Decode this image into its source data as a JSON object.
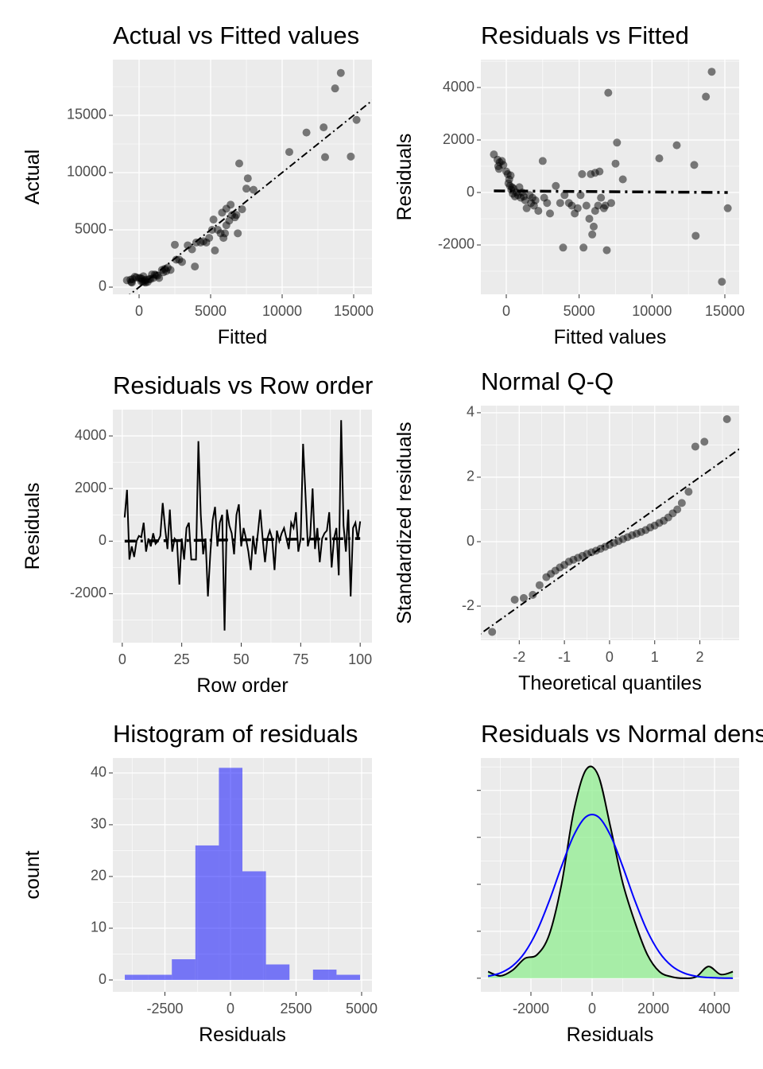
{
  "chart_data": [
    {
      "type": "scatter",
      "title": "Actual vs Fitted values",
      "xlabel": "Fitted",
      "ylabel": "Actual",
      "color": "#000000",
      "alpha": 0.5,
      "diagonal": true,
      "grid": true,
      "xlim": [
        -1833,
        16278
      ],
      "ylim": [
        -625,
        19861
      ],
      "xticks": [
        0,
        5000,
        10000,
        15000
      ],
      "yticks": [
        0,
        5000,
        10000,
        15000
      ],
      "x": [
        -850,
        -600,
        -550,
        -500,
        -450,
        -300,
        -200,
        0,
        100,
        150,
        200,
        250,
        300,
        350,
        400,
        450,
        500,
        600,
        700,
        800,
        900,
        1000,
        1100,
        1200,
        1300,
        1400,
        1600,
        1700,
        1900,
        2000,
        2200,
        2500,
        2600,
        2800,
        3000,
        3400,
        3700,
        3900,
        4300,
        4500,
        4700,
        4900,
        5100,
        5200,
        5300,
        5500,
        5700,
        5900,
        6000,
        6100,
        6300,
        6400,
        6500,
        6700,
        6800,
        6900,
        7000,
        7200,
        7500,
        7600,
        8000,
        10500,
        11700,
        12900,
        13000,
        13700,
        14100,
        14800,
        15200,
        5800,
        6100,
        4000,
        1800
      ],
      "values": [
        600,
        650,
        450,
        400,
        700,
        900,
        850,
        800,
        800,
        500,
        700,
        500,
        950,
        450,
        600,
        400,
        650,
        450,
        700,
        700,
        1100,
        800,
        1100,
        1050,
        1000,
        800,
        1500,
        1300,
        1400,
        1700,
        1500,
        3700,
        2400,
        2400,
        2200,
        3650,
        3300,
        1800,
        3900,
        4000,
        3900,
        4300,
        5000,
        5900,
        3200,
        5000,
        4700,
        4300,
        4700,
        5400,
        5800,
        7200,
        6300,
        6100,
        6300,
        4700,
        10800,
        6800,
        8600,
        9500,
        8500,
        11800,
        13500,
        13950,
        11350,
        17350,
        18700,
        11400,
        14600,
        6500,
        6850,
        3900,
        1600
      ]
    },
    {
      "type": "scatter",
      "title": "Residuals vs Fitted",
      "xlabel": "Fitted values",
      "ylabel": "Residuals",
      "color": "#000000",
      "alpha": 0.5,
      "grid": true,
      "xlim": [
        -1745,
        15983
      ],
      "ylim": [
        -3879,
        5061
      ],
      "xticks": [
        0,
        5000,
        10000,
        15000
      ],
      "yticks": [
        -2000,
        0,
        2000,
        4000
      ],
      "x": [
        -850,
        -600,
        -550,
        -500,
        -450,
        -300,
        -200,
        0,
        100,
        150,
        200,
        250,
        300,
        350,
        400,
        450,
        500,
        600,
        700,
        800,
        900,
        1000,
        1100,
        1200,
        1300,
        1400,
        1600,
        1700,
        1900,
        2000,
        2200,
        2500,
        2600,
        2800,
        3000,
        3400,
        3700,
        3900,
        4300,
        4500,
        4700,
        4900,
        5100,
        5200,
        5300,
        5500,
        5700,
        5900,
        6000,
        6100,
        6300,
        6400,
        6500,
        6700,
        6800,
        6900,
        7000,
        7200,
        7500,
        7600,
        8000,
        10500,
        11700,
        12900,
        13000,
        13700,
        14100,
        14800,
        15200,
        5800,
        6100,
        4000,
        1800
      ],
      "values": [
        1450,
        1250,
        1000,
        900,
        1150,
        1200,
        1050,
        800,
        700,
        350,
        500,
        250,
        650,
        100,
        200,
        -50,
        150,
        -150,
        0,
        -100,
        200,
        -200,
        0,
        -150,
        -300,
        -600,
        -100,
        -400,
        -500,
        -300,
        -700,
        1200,
        -200,
        -400,
        -800,
        250,
        -400,
        -2100,
        -400,
        -500,
        -800,
        -600,
        -100,
        700,
        -2100,
        -500,
        -1000,
        -1600,
        -1300,
        -700,
        -500,
        800,
        -200,
        -600,
        -500,
        -2200,
        3800,
        -400,
        1100,
        1900,
        500,
        1300,
        1800,
        1050,
        -1650,
        3650,
        4600,
        -3400,
        -600,
        700,
        750,
        -100,
        -200
      ],
      "trend": {
        "x": [
          -850,
          15200
        ],
        "values": [
          60,
          0
        ]
      }
    },
    {
      "type": "line",
      "title": "Residuals vs Row order",
      "xlabel": "Row order",
      "ylabel": "Residuals",
      "color": "#000000",
      "grid": true,
      "xlim": [
        -3.95,
        104.95
      ],
      "ylim": [
        -3860,
        5000
      ],
      "xticks": [
        0,
        25,
        50,
        75,
        100
      ],
      "yticks": [
        -2000,
        0,
        2000,
        4000
      ],
      "x": [
        1,
        2,
        3,
        4,
        5,
        6,
        7,
        8,
        9,
        10,
        11,
        12,
        13,
        14,
        15,
        16,
        17,
        18,
        19,
        20,
        21,
        22,
        23,
        24,
        25,
        26,
        27,
        28,
        29,
        30,
        31,
        32,
        33,
        34,
        35,
        36,
        37,
        38,
        39,
        40,
        41,
        42,
        43,
        44,
        45,
        46,
        47,
        48,
        49,
        50,
        51,
        52,
        53,
        54,
        55,
        56,
        57,
        58,
        59,
        60,
        61,
        62,
        63,
        64,
        65,
        66,
        67,
        68,
        69,
        70,
        71,
        72,
        73,
        74,
        75,
        76,
        77,
        78,
        79,
        80,
        81,
        82,
        83,
        84,
        85,
        86,
        87,
        88,
        89,
        90,
        91,
        92,
        93,
        94,
        95,
        96,
        97,
        98,
        99,
        100
      ],
      "values": [
        900,
        1950,
        -700,
        -200,
        -600,
        0,
        200,
        150,
        700,
        -400,
        100,
        -200,
        300,
        -100,
        0,
        200,
        1450,
        500,
        -300,
        1200,
        -400,
        100,
        0,
        -1650,
        100,
        -700,
        500,
        700,
        -700,
        -700,
        -700,
        3800,
        1000,
        -500,
        100,
        -2100,
        -500,
        800,
        1300,
        -200,
        700,
        1000,
        -3400,
        1200,
        600,
        300,
        -500,
        1000,
        1400,
        -200,
        500,
        100,
        -400,
        -1100,
        200,
        -500,
        300,
        1200,
        100,
        -800,
        100,
        400,
        100,
        -1100,
        400,
        0,
        300,
        500,
        100,
        -300,
        700,
        500,
        1100,
        -400,
        100,
        3700,
        1800,
        -200,
        200,
        2000,
        -300,
        500,
        -800,
        100,
        300,
        400,
        1100,
        -1000,
        100,
        500,
        -1300,
        4600,
        600,
        -400,
        1200,
        -2100,
        500,
        700,
        50,
        750
      ],
      "trend": {
        "x": [
          1,
          100
        ],
        "values": [
          0,
          100
        ]
      }
    },
    {
      "type": "scatter",
      "title": "Normal Q-Q",
      "xlabel": "Theoretical quantiles",
      "ylabel": "Standardized residuals",
      "color": "#000000",
      "alpha": 0.5,
      "diagonal": true,
      "grid": true,
      "xlim": [
        -2.85,
        2.87
      ],
      "ylim": [
        -3.06,
        4.22
      ],
      "xticks": [
        -2,
        -1,
        0,
        1,
        2
      ],
      "yticks": [
        -2,
        0,
        2,
        4
      ],
      "x": [
        -2.6,
        -2.1,
        -1.9,
        -1.7,
        -1.55,
        -1.4,
        -1.3,
        -1.2,
        -1.1,
        -1.0,
        -0.9,
        -0.8,
        -0.7,
        -0.6,
        -0.5,
        -0.4,
        -0.3,
        -0.2,
        -0.1,
        0,
        0.1,
        0.2,
        0.3,
        0.4,
        0.5,
        0.6,
        0.7,
        0.8,
        0.9,
        1.0,
        1.1,
        1.2,
        1.3,
        1.4,
        1.5,
        1.6,
        1.75,
        1.9,
        2.1,
        2.6
      ],
      "values": [
        -2.8,
        -1.8,
        -1.75,
        -1.65,
        -1.35,
        -1.1,
        -1.0,
        -0.9,
        -0.8,
        -0.72,
        -0.62,
        -0.56,
        -0.5,
        -0.44,
        -0.38,
        -0.33,
        -0.28,
        -0.22,
        -0.16,
        -0.1,
        -0.04,
        0.02,
        0.08,
        0.14,
        0.2,
        0.25,
        0.3,
        0.36,
        0.44,
        0.5,
        0.58,
        0.65,
        0.75,
        0.88,
        1.0,
        1.2,
        1.55,
        2.95,
        3.1,
        3.8
      ]
    },
    {
      "type": "histogram",
      "title": "Histogram of residuals",
      "xlabel": "Residuals",
      "ylabel": "count",
      "color": "#0000ff",
      "alpha": 0.5,
      "grid": true,
      "xlim": [
        -4485,
        5394
      ],
      "ylim": [
        -2.3,
        42.9
      ],
      "xticks": [
        -2500,
        0,
        2500,
        5000
      ],
      "yticks": [
        0,
        10,
        20,
        30,
        40
      ],
      "bins": [
        -4030,
        -3133,
        -2236,
        -1339,
        -442,
        455,
        1352,
        2249,
        3146,
        4043,
        4940
      ],
      "values": [
        1,
        1,
        4,
        26,
        41,
        21,
        3,
        0,
        2,
        1
      ]
    },
    {
      "type": "density",
      "title": "Residuals vs Normal density",
      "xlabel": "Residuals",
      "grid": true,
      "ytick_labels": false,
      "color": "#000000",
      "fill": "#90ee90",
      "alpha": 0.75,
      "normal_color": "#0000ff",
      "xlim": [
        -3636,
        4805
      ],
      "ylim": [
        -2.9e-05,
        0.000469
      ],
      "xticks": [
        -2000,
        0,
        2000,
        4000
      ],
      "yticks": [
        0,
        0.0001,
        0.0002,
        0.0003,
        0.0004
      ],
      "x": [
        -3400,
        -3000,
        -2600,
        -2200,
        -1800,
        -1400,
        -1000,
        -600,
        -200,
        200,
        600,
        1000,
        1400,
        1800,
        2200,
        2600,
        3000,
        3400,
        3800,
        4200,
        4600
      ],
      "values": [
        1.4e-05,
        5e-06,
        1.7e-05,
        4.2e-05,
        5e-05,
        9.3e-05,
        0.0002,
        0.000356,
        0.000444,
        0.000432,
        0.000322,
        0.000203,
        0.000119,
        5.1e-05,
        1.4e-05,
        3e-06,
        0,
        3e-06,
        2.5e-05,
        8e-06,
        1.4e-05
      ],
      "normal": [
        4.2e-06,
        1.11e-05,
        2.63e-05,
        5.48e-05,
        0.000101,
        0.0001649,
        0.000238,
        0.0003041,
        0.0003437,
        0.0003437,
        0.0003041,
        0.000238,
        0.0001649,
        0.000101,
        5.48e-05,
        2.63e-05,
        1.11e-05,
        4.2e-06,
        1.4e-06,
        4e-07,
        1e-07
      ]
    }
  ]
}
